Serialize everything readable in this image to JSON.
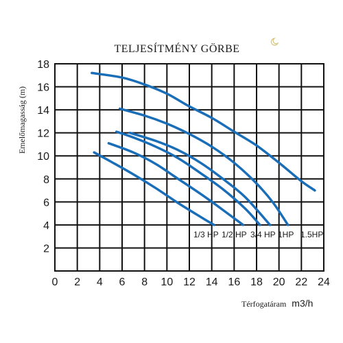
{
  "chart_data": {
    "type": "line",
    "title": "TELJESÍTMÉNY GÖRBE",
    "ylabel": "Emelőmagasság (m)",
    "xlabel": "Térfogatáram",
    "xunit": "m3/h",
    "xlim": [
      0,
      24
    ],
    "ylim": [
      0,
      18
    ],
    "x_ticks": [
      "0",
      "2",
      "4",
      "6",
      "8",
      "10",
      "12",
      "14",
      "16",
      "18",
      "20",
      "22",
      "24"
    ],
    "y_ticks": [
      "2",
      "4",
      "6",
      "8",
      "10",
      "12",
      "14",
      "16",
      "18"
    ],
    "grid": true,
    "series": [
      {
        "name": "1/3 HP",
        "x": [
          3.5,
          5,
          7,
          9,
          11,
          13,
          14.2
        ],
        "y": [
          10.3,
          9.5,
          8.4,
          7.2,
          5.9,
          4.7,
          4.0
        ]
      },
      {
        "name": "1/2 HP",
        "x": [
          4.8,
          7,
          9,
          11,
          13,
          15,
          16.8
        ],
        "y": [
          11.1,
          10.3,
          9.3,
          8.0,
          6.7,
          5.3,
          4.0
        ]
      },
      {
        "name": "3/4 HP",
        "x": [
          5.5,
          7,
          9,
          11,
          13,
          15,
          17,
          18.3
        ],
        "y": [
          12.1,
          11.6,
          10.8,
          9.8,
          8.5,
          7.1,
          5.4,
          4.0
        ]
      },
      {
        "name": "1HP",
        "x": [
          6.7,
          9,
          11,
          13,
          15,
          17,
          19.2
        ],
        "y": [
          12.0,
          11.3,
          10.5,
          9.4,
          8.0,
          6.4,
          4.0
        ]
      },
      {
        "name": "1.5HP",
        "x": [
          5.8,
          8,
          10,
          12,
          14,
          16,
          18,
          19.5,
          20.8
        ],
        "y": [
          14.1,
          13.5,
          12.8,
          11.9,
          10.8,
          9.4,
          7.6,
          5.9,
          4.0
        ]
      },
      {
        "name": "",
        "x": [
          3.3,
          6,
          8,
          10,
          12,
          14,
          16,
          18,
          20,
          22,
          23.2
        ],
        "y": [
          17.2,
          16.8,
          16.2,
          15.4,
          14.3,
          13.3,
          12.1,
          10.9,
          9.4,
          7.8,
          7.0
        ]
      }
    ],
    "series_labels": [
      "1/3 HP",
      "1/2 HP",
      "3/4 HP",
      "1HP",
      "1.5HP"
    ],
    "colors": {
      "curve": "#1a6eb8",
      "grid": "#111111"
    }
  }
}
